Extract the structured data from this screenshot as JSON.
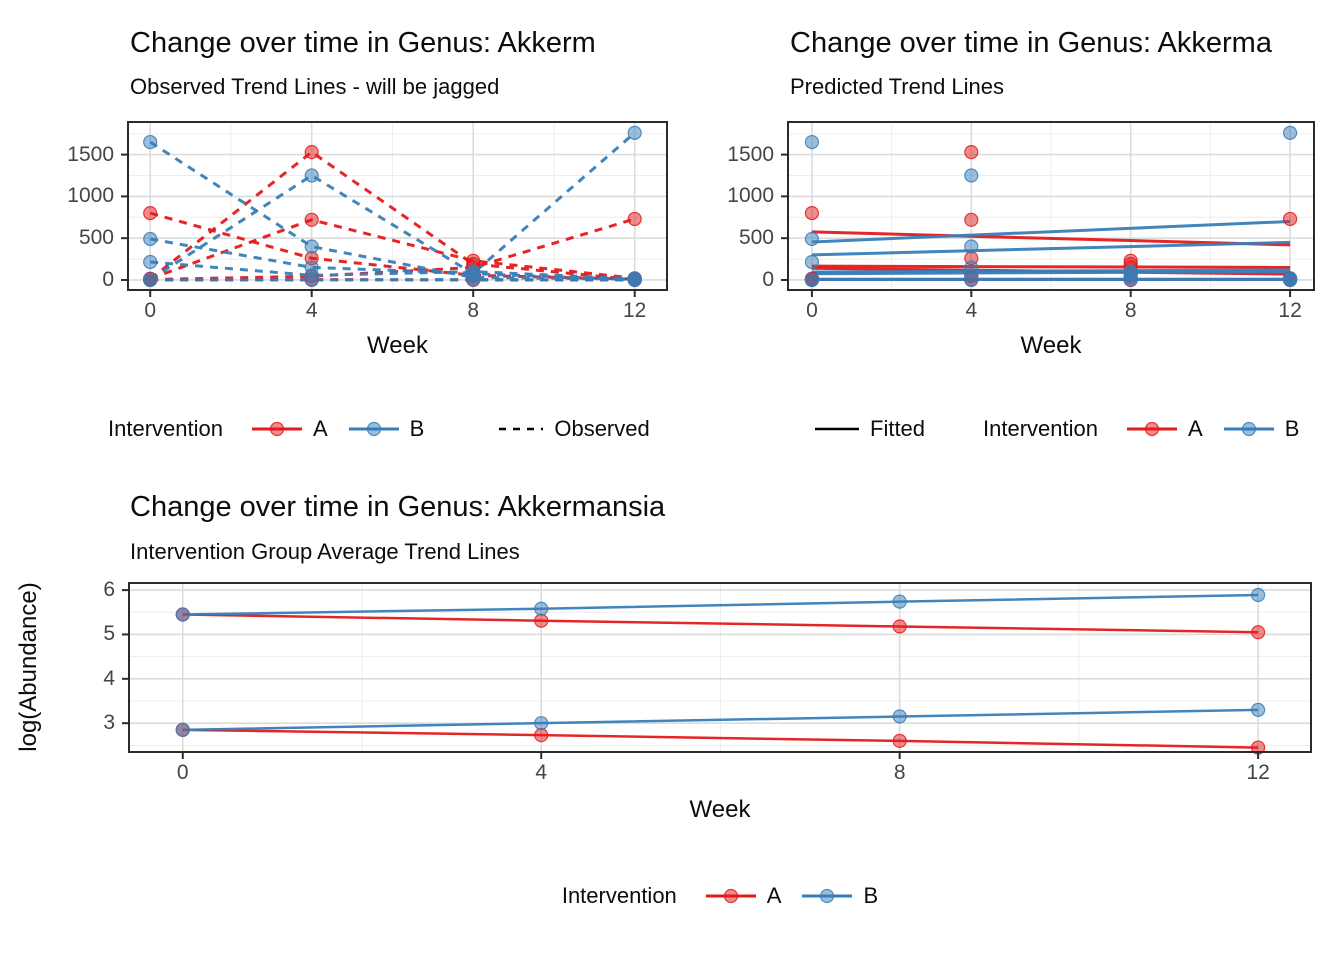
{
  "colors": {
    "intervention_a": "#E41A1C",
    "intervention_b": "#377EB8",
    "linetype_key": "#000000",
    "grid_major": "#DCDCDC",
    "grid_minor": "#EDEDED",
    "axis_text": "#454545",
    "panel_border": "#2B2B2B"
  },
  "charts": [
    {
      "title": "Change over time in Genus: Akkerm",
      "subtitle": "Observed Trend Lines - will be jagged",
      "xlabel": "Week",
      "legend": {
        "title": "Intervention",
        "items": [
          {
            "label": "A"
          },
          {
            "label": "B"
          }
        ],
        "linetype_label": "Observed"
      },
      "chart_data": {
        "type": "line",
        "linetype": "dashed",
        "show_points": true,
        "x": [
          0,
          4,
          8,
          12
        ],
        "xlim": [
          -0.55,
          12.8
        ],
        "ylim": [
          -120,
          1890
        ],
        "xticks": [
          0,
          4,
          8,
          12
        ],
        "yticks": [
          0,
          500,
          1000,
          1500
        ],
        "xminor": [
          2,
          6,
          10
        ],
        "yminor": [
          250,
          750,
          1250,
          1750
        ],
        "series": [
          {
            "name": "subject-a1",
            "group": "A",
            "values": [
              10,
              1530,
              190,
              5
            ]
          },
          {
            "name": "subject-a2",
            "group": "A",
            "values": [
              800,
              260,
              55,
              10
            ]
          },
          {
            "name": "subject-a3",
            "group": "A",
            "values": [
              15,
              720,
              230,
              20
            ]
          },
          {
            "name": "subject-a4",
            "group": "A",
            "values": [
              5,
              45,
              150,
              730
            ]
          },
          {
            "name": "subject-a5",
            "group": "A",
            "values": [
              0,
              5,
              0,
              0
            ]
          },
          {
            "name": "subject-b1",
            "group": "B",
            "values": [
              1650,
              400,
              30,
              10
            ]
          },
          {
            "name": "subject-b2",
            "group": "B",
            "values": [
              5,
              1250,
              75,
              5
            ]
          },
          {
            "name": "subject-b3",
            "group": "B",
            "values": [
              490,
              150,
              80,
              1760
            ]
          },
          {
            "name": "subject-b4",
            "group": "B",
            "values": [
              215,
              55,
              100,
              15
            ]
          },
          {
            "name": "subject-b5",
            "group": "B",
            "values": [
              0,
              0,
              5,
              0
            ]
          }
        ]
      }
    },
    {
      "title": "Change over time in Genus: Akkerma",
      "subtitle": "Predicted Trend Lines",
      "xlabel": "Week",
      "legend": {
        "title": "Intervention",
        "items": [
          {
            "label": "A"
          },
          {
            "label": "B"
          }
        ],
        "linetype_label": "Fitted"
      },
      "chart_data": {
        "type": "scatter+fit",
        "show_points": true,
        "x": [
          0,
          4,
          8,
          12
        ],
        "xlim": [
          -0.6,
          12.6
        ],
        "ylim": [
          -120,
          1890
        ],
        "xticks": [
          0,
          4,
          8,
          12
        ],
        "yticks": [
          0,
          500,
          1000,
          1500
        ],
        "xminor": [
          2,
          6,
          10
        ],
        "yminor": [
          250,
          750,
          1250,
          1750
        ],
        "points_series": [
          {
            "name": "subject-a1",
            "group": "A",
            "values": [
              10,
              1530,
              190,
              5
            ]
          },
          {
            "name": "subject-a2",
            "group": "A",
            "values": [
              800,
              260,
              55,
              10
            ]
          },
          {
            "name": "subject-a3",
            "group": "A",
            "values": [
              15,
              720,
              230,
              20
            ]
          },
          {
            "name": "subject-a4",
            "group": "A",
            "values": [
              5,
              45,
              150,
              730
            ]
          },
          {
            "name": "subject-a5",
            "group": "A",
            "values": [
              0,
              5,
              0,
              0
            ]
          },
          {
            "name": "subject-b1",
            "group": "B",
            "values": [
              1650,
              400,
              30,
              10
            ]
          },
          {
            "name": "subject-b2",
            "group": "B",
            "values": [
              5,
              1250,
              75,
              5
            ]
          },
          {
            "name": "subject-b3",
            "group": "B",
            "values": [
              490,
              150,
              80,
              1760
            ]
          },
          {
            "name": "subject-b4",
            "group": "B",
            "values": [
              215,
              55,
              100,
              15
            ]
          },
          {
            "name": "subject-b5",
            "group": "B",
            "values": [
              0,
              0,
              5,
              0
            ]
          }
        ],
        "fit_x": [
          0,
          12
        ],
        "fits": [
          {
            "group": "A",
            "y": [
              575,
              420
            ]
          },
          {
            "group": "A",
            "y": [
              165,
              150
            ]
          },
          {
            "group": "A",
            "y": [
              140,
              70
            ]
          },
          {
            "group": "A",
            "y": [
              8,
              8
            ]
          },
          {
            "group": "B",
            "y": [
              455,
              700
            ]
          },
          {
            "group": "B",
            "y": [
              300,
              450
            ]
          },
          {
            "group": "B",
            "y": [
              95,
              120
            ]
          },
          {
            "group": "B",
            "y": [
              75,
              100
            ]
          },
          {
            "group": "B",
            "y": [
              5,
              5
            ]
          }
        ]
      }
    },
    {
      "title": "Change over time in Genus: Akkermansia",
      "subtitle": "Intervention Group Average Trend Lines",
      "xlabel": "Week",
      "ylabel": "log(Abundance)",
      "legend": {
        "title": "Intervention",
        "items": [
          {
            "label": "A"
          },
          {
            "label": "B"
          }
        ]
      },
      "chart_data": {
        "type": "line",
        "linetype": "solid",
        "show_points": true,
        "x": [
          0,
          4,
          8,
          12
        ],
        "xlim": [
          -0.6,
          12.59
        ],
        "ylim": [
          2.35,
          6.16
        ],
        "xticks": [
          0,
          4,
          8,
          12
        ],
        "yticks": [
          3,
          4,
          5,
          6
        ],
        "xminor": [
          2,
          6,
          10
        ],
        "yminor": [
          2.5,
          3.5,
          4.5,
          5.5
        ],
        "series": [
          {
            "name": "group-a-average-high",
            "group": "A",
            "values": [
              5.45,
              5.31,
              5.18,
              5.05
            ]
          },
          {
            "name": "group-b-average-high",
            "group": "B",
            "values": [
              5.45,
              5.58,
              5.74,
              5.89
            ]
          },
          {
            "name": "group-a-average-low",
            "group": "A",
            "values": [
              2.85,
              2.73,
              2.6,
              2.45
            ]
          },
          {
            "name": "group-b-average-low",
            "group": "B",
            "values": [
              2.85,
              3.0,
              3.15,
              3.3
            ]
          }
        ]
      }
    }
  ]
}
